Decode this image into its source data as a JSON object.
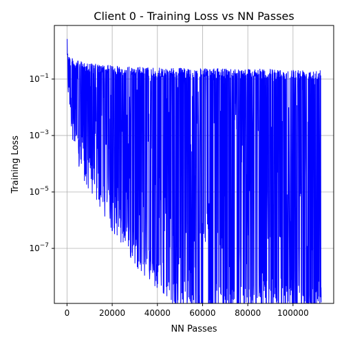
{
  "chart_data": {
    "type": "line",
    "title": "Client 0 - Training Loss vs NN Passes",
    "xlabel": "NN Passes",
    "ylabel": "Training Loss",
    "xscale": "linear",
    "yscale": "log",
    "xlim": [
      -5600,
      118000
    ],
    "ylim_log10": [
      -8.95,
      0.9
    ],
    "grid": true,
    "line_color": "#0000ff",
    "x_ticks": [
      0,
      20000,
      40000,
      60000,
      80000,
      100000
    ],
    "x_tick_labels": [
      "0",
      "20000",
      "40000",
      "60000",
      "80000",
      "100000"
    ],
    "y_ticks_log10": [
      -7,
      -5,
      -3,
      -1
    ],
    "y_tick_labels": [
      {
        "base": "10",
        "exp": "−7"
      },
      {
        "base": "10",
        "exp": "−5"
      },
      {
        "base": "10",
        "exp": "−3"
      },
      {
        "base": "10",
        "exp": "−1"
      }
    ],
    "series": [
      {
        "envelope": {
          "x": [
            0,
            500,
            1500,
            3000,
            5000,
            8000,
            12000,
            16000,
            20000,
            25000,
            30000,
            40000,
            50000,
            60000,
            70000,
            80000,
            90000,
            100000,
            112500
          ],
          "upper_log10": [
            0.35,
            0.0,
            -0.2,
            -0.3,
            -0.35,
            -0.4,
            -0.45,
            -0.5,
            -0.5,
            -0.55,
            -0.55,
            -0.6,
            -0.6,
            -0.62,
            -0.62,
            -0.62,
            -0.65,
            -0.65,
            -0.65
          ],
          "lower_log10": [
            -0.6,
            -1.7,
            -2.5,
            -3.5,
            -4.2,
            -4.8,
            -5.3,
            -5.8,
            -6.4,
            -7.0,
            -7.6,
            -8.5,
            -9.2,
            -9.5,
            -9.5,
            -9.5,
            -9.5,
            -9.5,
            -9.5
          ]
        },
        "x_end": 112500
      }
    ]
  }
}
